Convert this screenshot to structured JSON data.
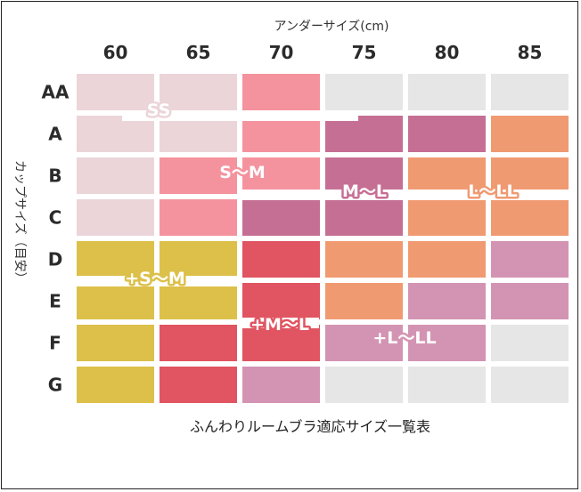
{
  "chart_data": {
    "type": "heatmap",
    "xlabel": "アンダーサイズ(cm)",
    "ylabel": "カップサイズ（目安）",
    "caption": "ふんわりルームブラ適応サイズ一覧表",
    "columns": [
      "60",
      "65",
      "70",
      "75",
      "80",
      "85"
    ],
    "rows": [
      "AA",
      "A",
      "B",
      "C",
      "D",
      "E",
      "F",
      "G"
    ],
    "colors": {
      "SS": "#ebd5d9",
      "S〜M": "#f4939e",
      "M〜L": "#c66f94",
      "L〜LL": "#f09a72",
      "+S〜M": "#dcc049",
      "+M〜L": "#e05561",
      "+L〜LL": "#d394b3",
      "none": "#e6e6e6"
    },
    "cells": [
      [
        "SS",
        "SS",
        "S〜M",
        "none",
        "none",
        "none"
      ],
      [
        "SS",
        "SS",
        "S〜M",
        "M〜L",
        "M〜L",
        "L〜LL"
      ],
      [
        "SS",
        "S〜M",
        "S〜M",
        "M〜L",
        "L〜LL",
        "L〜LL"
      ],
      [
        "SS",
        "S〜M",
        "M〜L",
        "M〜L",
        "L〜LL",
        "L〜LL"
      ],
      [
        "+S〜M",
        "+S〜M",
        "+M〜L",
        "L〜LL",
        "L〜LL",
        "+L〜LL"
      ],
      [
        "+S〜M",
        "+S〜M",
        "+M〜L",
        "L〜LL",
        "+L〜LL",
        "+L〜LL"
      ],
      [
        "+S〜M",
        "+M〜L",
        "+M〜L",
        "+L〜LL",
        "+L〜LL",
        "none"
      ],
      [
        "+S〜M",
        "+M〜L",
        "+L〜LL",
        "none",
        "none",
        "none"
      ]
    ],
    "region_labels": [
      {
        "text": "SS",
        "color": "#ebd5d9"
      },
      {
        "text": "S〜M",
        "color": "#f4939e"
      },
      {
        "text": "M〜L",
        "color": "#c66f94"
      },
      {
        "text": "L〜LL",
        "color": "#f09a72"
      },
      {
        "text": "+S〜M",
        "color": "#dcc049"
      },
      {
        "text": "+M〜L",
        "color": "#e05561"
      },
      {
        "text": "+L〜LL",
        "color": "#d394b3"
      }
    ]
  }
}
